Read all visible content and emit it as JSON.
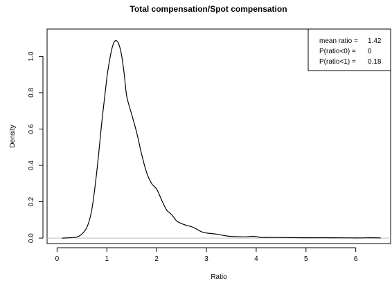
{
  "chart_data": {
    "type": "line",
    "title": "Total compensation/Spot compensation",
    "xlabel": "Ratio",
    "ylabel": "Density",
    "xlim": [
      -0.2,
      6.7
    ],
    "ylim": [
      -0.03,
      1.15
    ],
    "xticks": [
      0,
      1,
      2,
      3,
      4,
      5,
      6
    ],
    "xtick_labels": [
      "0",
      "1",
      "2",
      "3",
      "4",
      "5",
      "6"
    ],
    "yticks": [
      0.0,
      0.2,
      0.4,
      0.6,
      0.8,
      1.0
    ],
    "ytick_labels": [
      "0.0",
      "0.2",
      "0.4",
      "0.6",
      "0.8",
      "1.0"
    ],
    "reference_line_y": 0,
    "legend_position": "top-right",
    "legend": [
      {
        "label": "mean ratio =",
        "value": "1.42"
      },
      {
        "label": "P(ratio<0) =",
        "value": "0"
      },
      {
        "label": "P(ratio<1) =",
        "value": "0.18"
      }
    ],
    "series": [
      {
        "x": [
          0.1,
          0.3,
          0.45,
          0.6,
          0.7,
          0.8,
          0.9,
          1.0,
          1.05,
          1.1,
          1.15,
          1.2,
          1.25,
          1.3,
          1.35,
          1.4,
          1.5,
          1.6,
          1.7,
          1.8,
          1.9,
          2.0,
          2.1,
          2.2,
          2.3,
          2.4,
          2.5,
          2.6,
          2.7,
          2.8,
          2.9,
          3.0,
          3.2,
          3.4,
          3.6,
          3.8,
          3.95,
          4.1,
          4.3,
          4.6,
          5.0,
          5.5,
          6.0,
          6.3,
          6.5
        ],
        "y": [
          0.0,
          0.003,
          0.012,
          0.06,
          0.16,
          0.37,
          0.64,
          0.88,
          0.97,
          1.04,
          1.08,
          1.085,
          1.06,
          1.0,
          0.9,
          0.78,
          0.68,
          0.58,
          0.46,
          0.36,
          0.3,
          0.27,
          0.21,
          0.155,
          0.13,
          0.095,
          0.08,
          0.07,
          0.063,
          0.05,
          0.035,
          0.028,
          0.022,
          0.012,
          0.008,
          0.007,
          0.01,
          0.004,
          0.004,
          0.003,
          0.002,
          0.002,
          0.001,
          0.002,
          0.001
        ]
      }
    ]
  }
}
